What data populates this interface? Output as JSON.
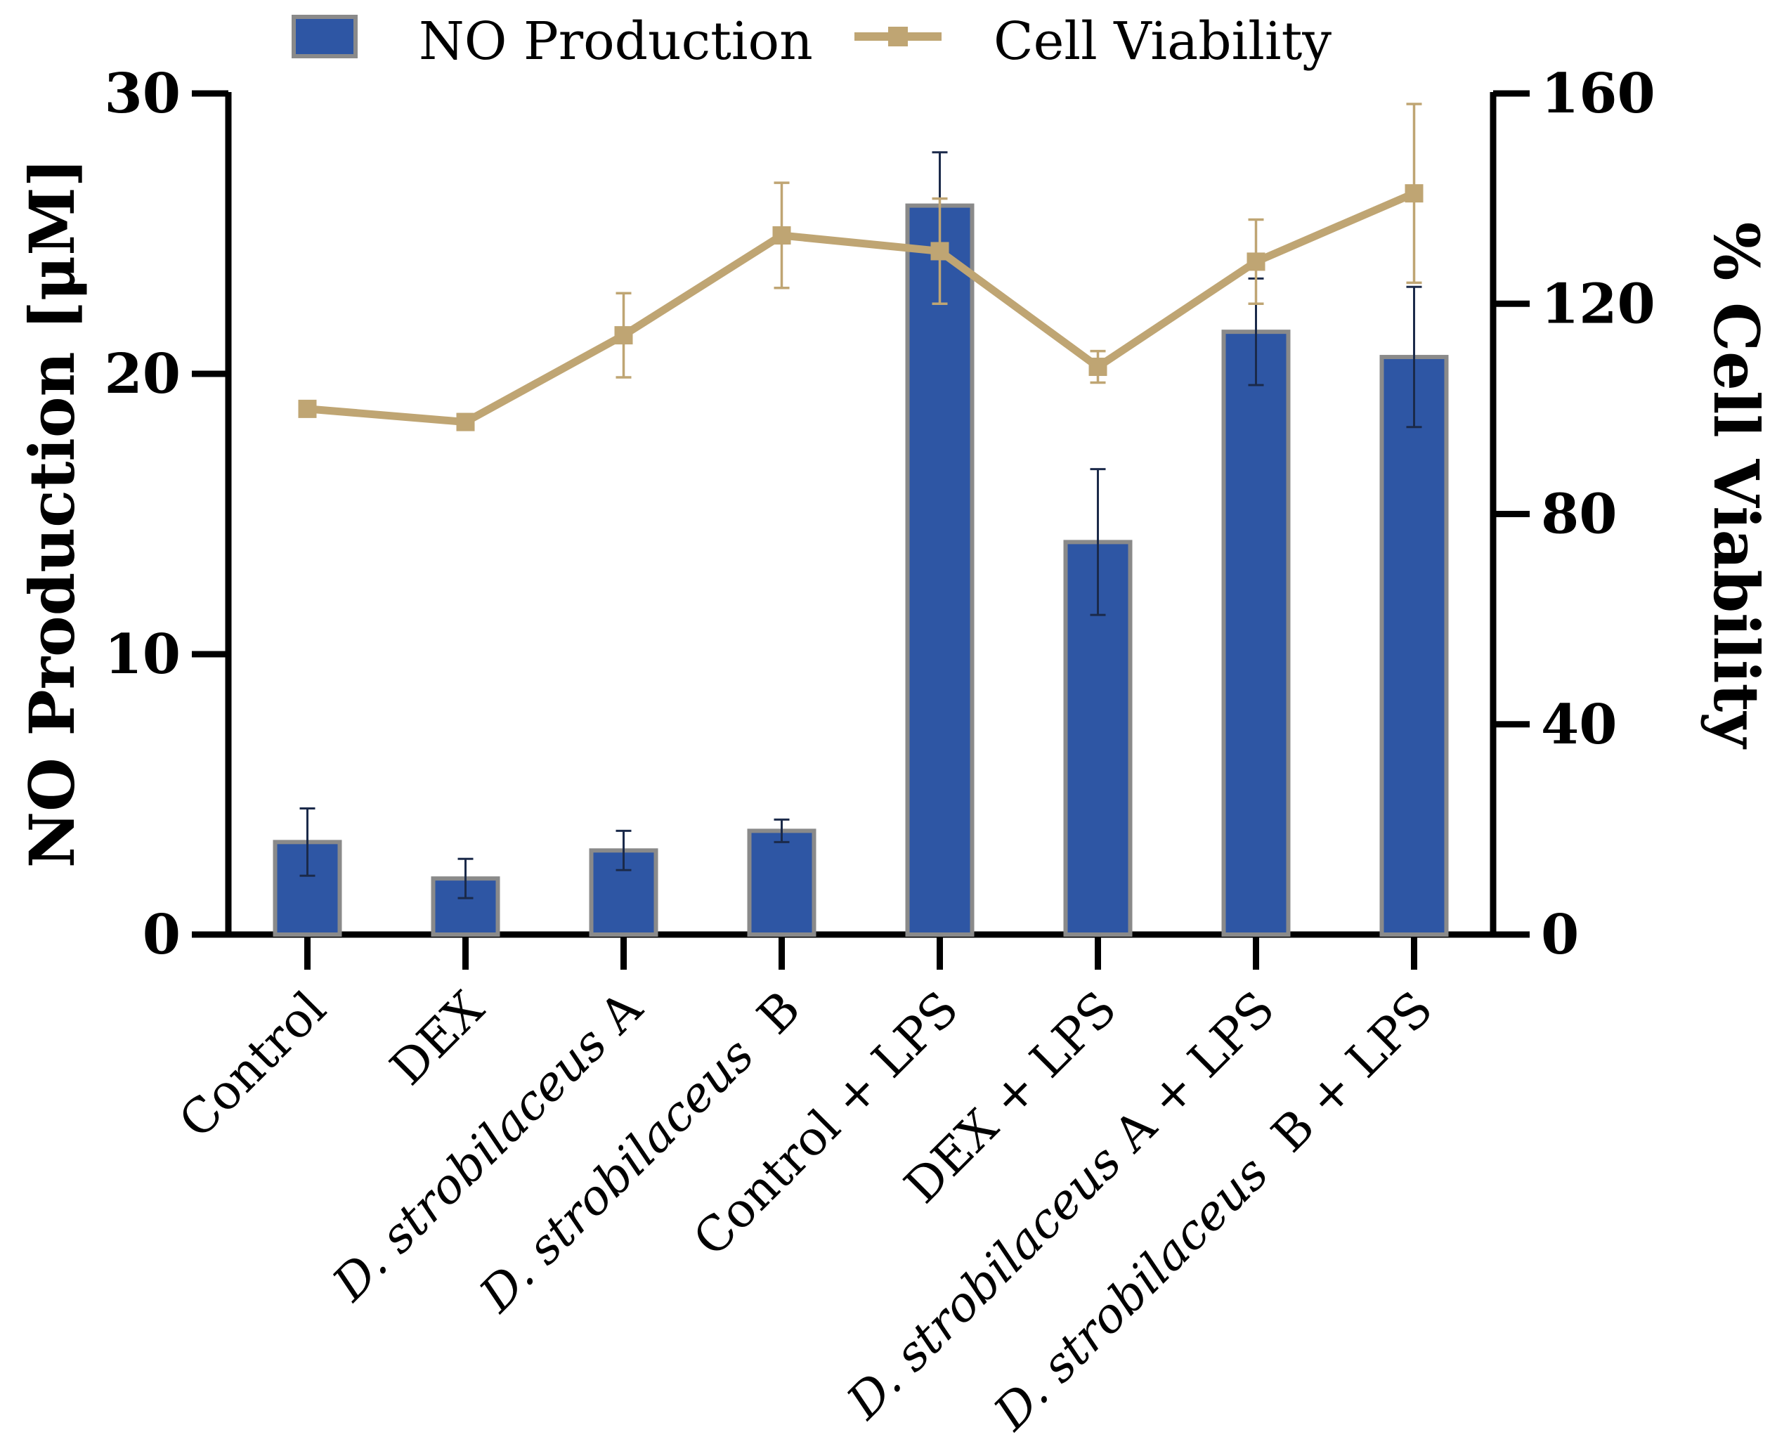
{
  "chart_data": {
    "type": "bar+line",
    "categories": [
      {
        "prefix": "",
        "italic": "",
        "suffix": "Control"
      },
      {
        "prefix": "",
        "italic": "",
        "suffix": "DEX"
      },
      {
        "prefix": "",
        "italic": "D. strobilaceus",
        "suffix": " A"
      },
      {
        "prefix": "",
        "italic": "D. strobilaceus",
        "suffix": "  B"
      },
      {
        "prefix": "",
        "italic": "",
        "suffix": "Control + LPS"
      },
      {
        "prefix": "",
        "italic": "",
        "suffix": "DEX + LPS"
      },
      {
        "prefix": "",
        "italic": "D. strobilaceus",
        "suffix": " A + LPS"
      },
      {
        "prefix": "",
        "italic": "D. strobilaceus",
        "suffix": "  B + LPS"
      }
    ],
    "series": [
      {
        "name": "NO Production",
        "kind": "bar",
        "axis": "left",
        "color": "#2E56A4",
        "edge_color": "#8A8A8A",
        "values": [
          3.3,
          2.0,
          3.0,
          3.7,
          26.0,
          14.0,
          21.5,
          20.6
        ],
        "errors": [
          1.2,
          0.7,
          0.7,
          0.4,
          1.9,
          2.6,
          1.9,
          2.5
        ]
      },
      {
        "name": "Cell Viability",
        "kind": "line",
        "axis": "right",
        "color": "#BFA573",
        "values": [
          100,
          97.5,
          114,
          133,
          130,
          108,
          128,
          141
        ],
        "errors": [
          1,
          1.5,
          8,
          10,
          10,
          3,
          8,
          17
        ]
      }
    ],
    "left_axis": {
      "label": "NO Production [μM]",
      "min": 0,
      "max": 30,
      "ticks": [
        "0",
        "10",
        "20",
        "30"
      ]
    },
    "right_axis": {
      "label": "% Cell Viability",
      "min": 0,
      "max": 160,
      "ticks": [
        "0",
        "40",
        "80",
        "120",
        "160"
      ]
    },
    "legend": {
      "position": "top",
      "items": [
        "NO Production",
        "Cell Viability"
      ]
    },
    "grid": false
  }
}
